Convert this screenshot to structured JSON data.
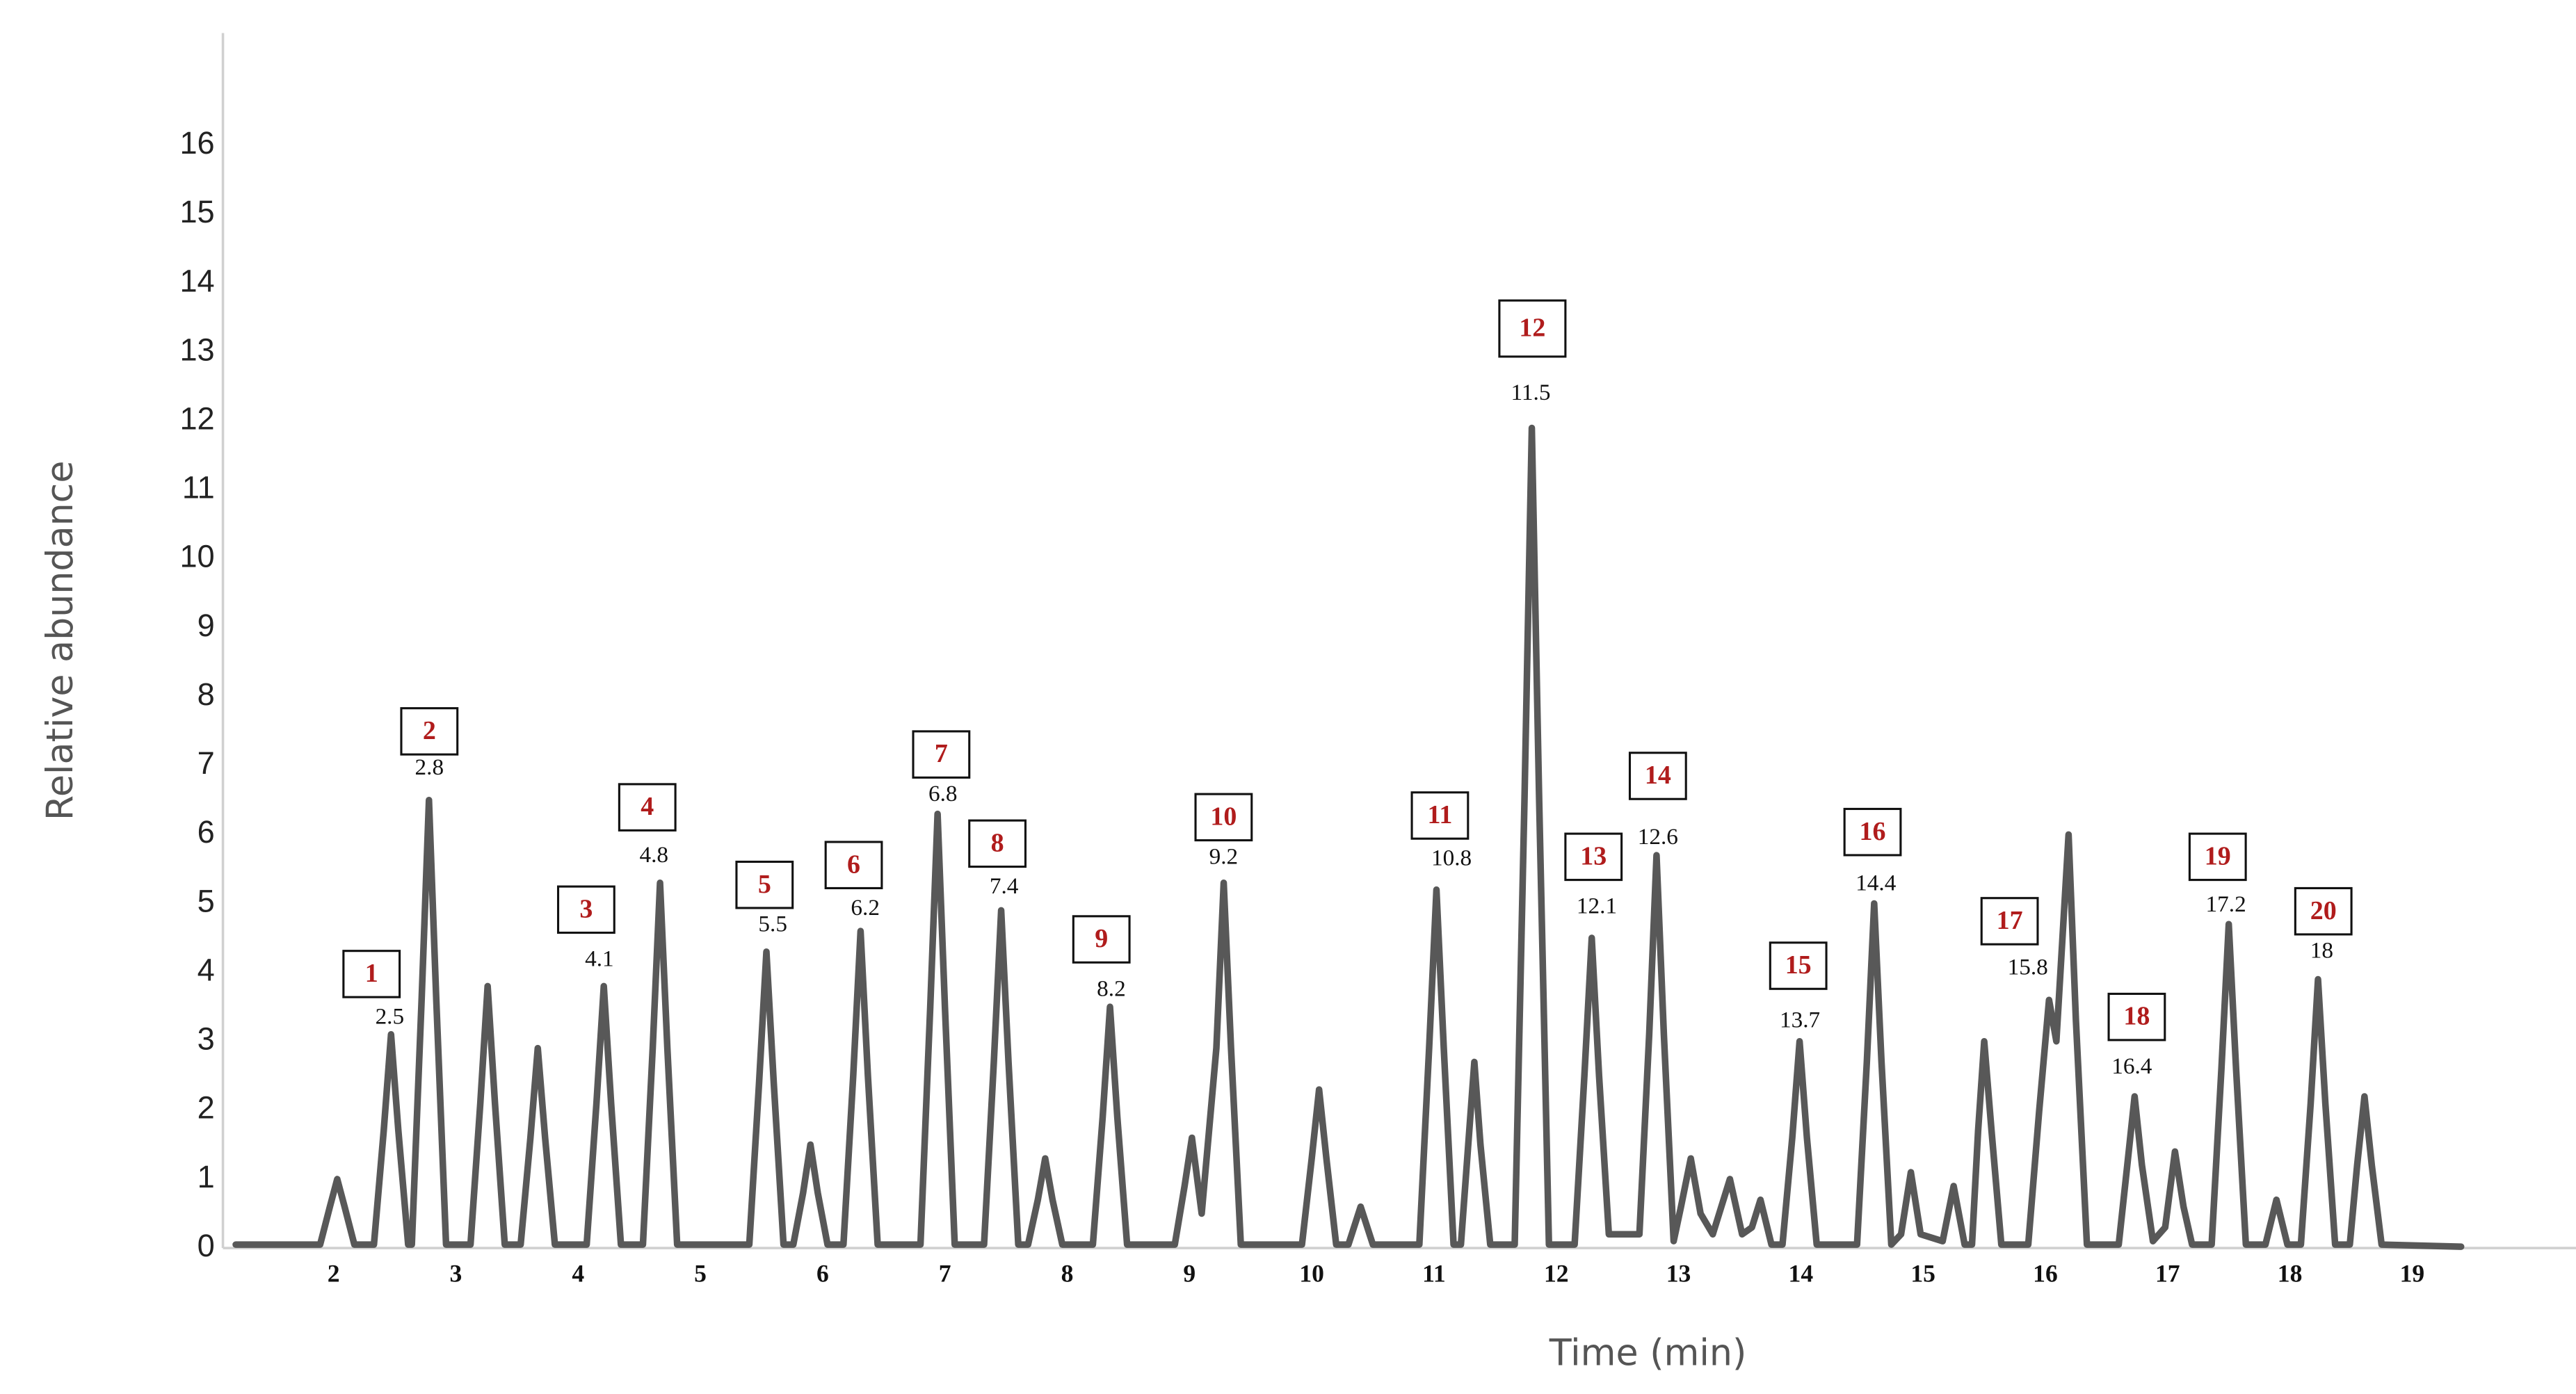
{
  "chart_data": {
    "type": "line",
    "x_label": "Time (min)",
    "y_label": "Relative abundance",
    "color": "#585858",
    "xlim": [
      1.095,
      20.34
    ],
    "xticks": [
      2,
      3,
      4,
      5,
      6,
      7,
      8,
      9,
      10,
      11,
      12,
      13,
      14,
      15,
      16,
      17,
      18,
      19
    ],
    "ylim": [
      0,
      17.63
    ],
    "yticks": [
      0,
      1,
      2,
      3,
      4,
      5,
      6,
      7,
      8,
      9,
      10,
      11,
      12,
      13,
      14,
      15,
      16
    ],
    "x": [
      1.2,
      1.89,
      1.97,
      2.03,
      2.09,
      2.17,
      2.33,
      2.41,
      2.47,
      2.53,
      2.61,
      2.64,
      2.72,
      2.78,
      2.84,
      2.92,
      3.12,
      3.2,
      3.26,
      3.32,
      3.4,
      3.53,
      3.61,
      3.67,
      3.73,
      3.81,
      4.07,
      4.15,
      4.21,
      4.27,
      4.35,
      4.53,
      4.61,
      4.67,
      4.73,
      4.81,
      5.4,
      5.48,
      5.54,
      5.6,
      5.68,
      5.76,
      5.84,
      5.9,
      5.96,
      6.04,
      6.17,
      6.25,
      6.31,
      6.37,
      6.45,
      6.8,
      6.88,
      6.94,
      7.0,
      7.08,
      7.32,
      7.4,
      7.46,
      7.52,
      7.6,
      7.68,
      7.76,
      7.82,
      7.88,
      7.96,
      8.21,
      8.29,
      8.35,
      8.41,
      8.49,
      8.88,
      8.96,
      9.02,
      9.1,
      9.22,
      9.28,
      9.34,
      9.42,
      9.92,
      10.0,
      10.06,
      10.12,
      10.2,
      10.3,
      10.4,
      10.5,
      10.88,
      10.96,
      11.02,
      11.08,
      11.16,
      11.22,
      11.28,
      11.33,
      11.38,
      11.46,
      11.66,
      11.74,
      11.8,
      11.86,
      11.94,
      12.15,
      12.23,
      12.29,
      12.35,
      12.43,
      12.68,
      12.76,
      12.82,
      12.88,
      12.96,
      13.02,
      13.1,
      13.18,
      13.28,
      13.42,
      13.52,
      13.6,
      13.67,
      13.76,
      13.85,
      13.93,
      13.99,
      14.05,
      14.13,
      14.46,
      14.54,
      14.6,
      14.66,
      14.74,
      14.82,
      14.9,
      14.98,
      15.16,
      15.25,
      15.34,
      15.4,
      15.45,
      15.5,
      15.56,
      15.64,
      15.86,
      15.95,
      16.03,
      16.09,
      16.19,
      16.25,
      16.34,
      16.6,
      16.67,
      16.73,
      16.79,
      16.88,
      16.98,
      17.06,
      17.13,
      17.2,
      17.36,
      17.44,
      17.5,
      17.56,
      17.64,
      17.8,
      17.89,
      17.98,
      18.09,
      18.17,
      18.23,
      18.29,
      18.37,
      18.49,
      18.55,
      18.61,
      18.67,
      18.75,
      19.4
    ],
    "values": [
      0.05,
      0.05,
      0.6,
      1.0,
      0.6,
      0.05,
      0.05,
      1.7,
      3.1,
      1.7,
      0.05,
      0.05,
      3.6,
      6.5,
      3.6,
      0.05,
      0.05,
      2.1,
      3.8,
      2.1,
      0.05,
      0.05,
      1.6,
      2.9,
      1.6,
      0.05,
      0.05,
      2.1,
      3.8,
      2.1,
      0.05,
      0.05,
      2.9,
      5.3,
      2.9,
      0.05,
      0.05,
      2.4,
      4.3,
      2.4,
      0.05,
      0.05,
      0.8,
      1.5,
      0.8,
      0.05,
      0.05,
      2.5,
      4.6,
      2.5,
      0.05,
      0.05,
      3.5,
      6.3,
      3.5,
      0.05,
      0.05,
      2.7,
      4.9,
      2.7,
      0.05,
      0.05,
      0.7,
      1.3,
      0.7,
      0.05,
      0.05,
      1.9,
      3.5,
      1.9,
      0.05,
      0.05,
      0.9,
      1.6,
      0.5,
      2.9,
      5.3,
      2.9,
      0.05,
      0.05,
      1.3,
      2.3,
      1.3,
      0.05,
      0.05,
      0.6,
      0.05,
      0.05,
      2.9,
      5.2,
      2.9,
      0.05,
      0.05,
      1.5,
      2.7,
      1.5,
      0.05,
      0.05,
      6.5,
      11.9,
      6.5,
      0.05,
      0.05,
      2.5,
      4.5,
      2.5,
      0.2,
      0.2,
      3.1,
      5.7,
      3.1,
      0.1,
      0.6,
      1.3,
      0.5,
      0.2,
      1.0,
      0.2,
      0.3,
      0.7,
      0.05,
      0.05,
      1.6,
      3.0,
      1.6,
      0.05,
      0.05,
      2.7,
      5.0,
      2.7,
      0.05,
      0.2,
      1.1,
      0.2,
      0.1,
      0.9,
      0.05,
      0.05,
      1.7,
      3.0,
      1.7,
      0.05,
      0.05,
      2.0,
      3.6,
      3.0,
      6.0,
      3.3,
      0.05,
      0.05,
      1.2,
      2.2,
      1.2,
      0.1,
      0.3,
      1.4,
      0.6,
      0.05,
      0.05,
      2.6,
      4.7,
      2.6,
      0.05,
      0.05,
      0.7,
      0.05,
      0.05,
      2.1,
      3.9,
      2.1,
      0.05,
      0.05,
      1.2,
      2.2,
      1.2,
      0.05,
      0.02
    ],
    "annotations": [
      {
        "number": "1",
        "label": "2.5"
      },
      {
        "number": "2",
        "label": "2.8"
      },
      {
        "number": "3",
        "label": "4.1"
      },
      {
        "number": "4",
        "label": "4.8"
      },
      {
        "number": "5",
        "label": "5.5"
      },
      {
        "number": "6",
        "label": "6.2"
      },
      {
        "number": "7",
        "label": "6.8"
      },
      {
        "number": "8",
        "label": "7.4"
      },
      {
        "number": "9",
        "label": "8.2"
      },
      {
        "number": "10",
        "label": "9.2"
      },
      {
        "number": "11",
        "label": "10.8"
      },
      {
        "number": "12",
        "label": "11.5"
      },
      {
        "number": "13",
        "label": "12.1"
      },
      {
        "number": "14",
        "label": "12.6"
      },
      {
        "number": "15",
        "label": "13.7"
      },
      {
        "number": "16",
        "label": "14.4"
      },
      {
        "number": "17",
        "label": "15.8"
      },
      {
        "number": "18",
        "label": "16.4"
      },
      {
        "number": "19",
        "label": "17.2"
      },
      {
        "number": "20",
        "label": "18"
      }
    ]
  }
}
